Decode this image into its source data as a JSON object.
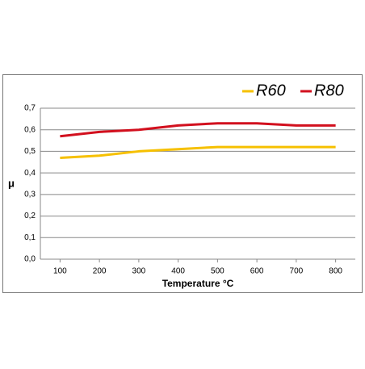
{
  "chart_data": {
    "type": "line",
    "x_label": "Temperature °C",
    "y_label": "μ",
    "x": [
      100,
      200,
      300,
      400,
      500,
      600,
      700,
      800
    ],
    "series": [
      {
        "name": "R60",
        "color": "#f6c000",
        "values": [
          0.47,
          0.48,
          0.5,
          0.51,
          0.52,
          0.52,
          0.52,
          0.52
        ]
      },
      {
        "name": "R80",
        "color": "#d2101e",
        "values": [
          0.57,
          0.59,
          0.6,
          0.62,
          0.63,
          0.63,
          0.62,
          0.62
        ]
      }
    ],
    "xlim": [
      50,
      850
    ],
    "xticks": [
      100,
      200,
      300,
      400,
      500,
      600,
      700,
      800
    ],
    "ylim": [
      0,
      0.7
    ],
    "yticks": [
      {
        "value": 0,
        "label": "0,0"
      },
      {
        "value": 0.1,
        "label": "0,1"
      },
      {
        "value": 0.2,
        "label": "0,2"
      },
      {
        "value": 0.3,
        "label": "0,3"
      },
      {
        "value": 0.4,
        "label": "0,4"
      },
      {
        "value": 0.5,
        "label": "0,5"
      },
      {
        "value": 0.6,
        "label": "0,6"
      },
      {
        "value": 0.7,
        "label": "0,7"
      }
    ],
    "grid": true,
    "legend": "top-right"
  }
}
